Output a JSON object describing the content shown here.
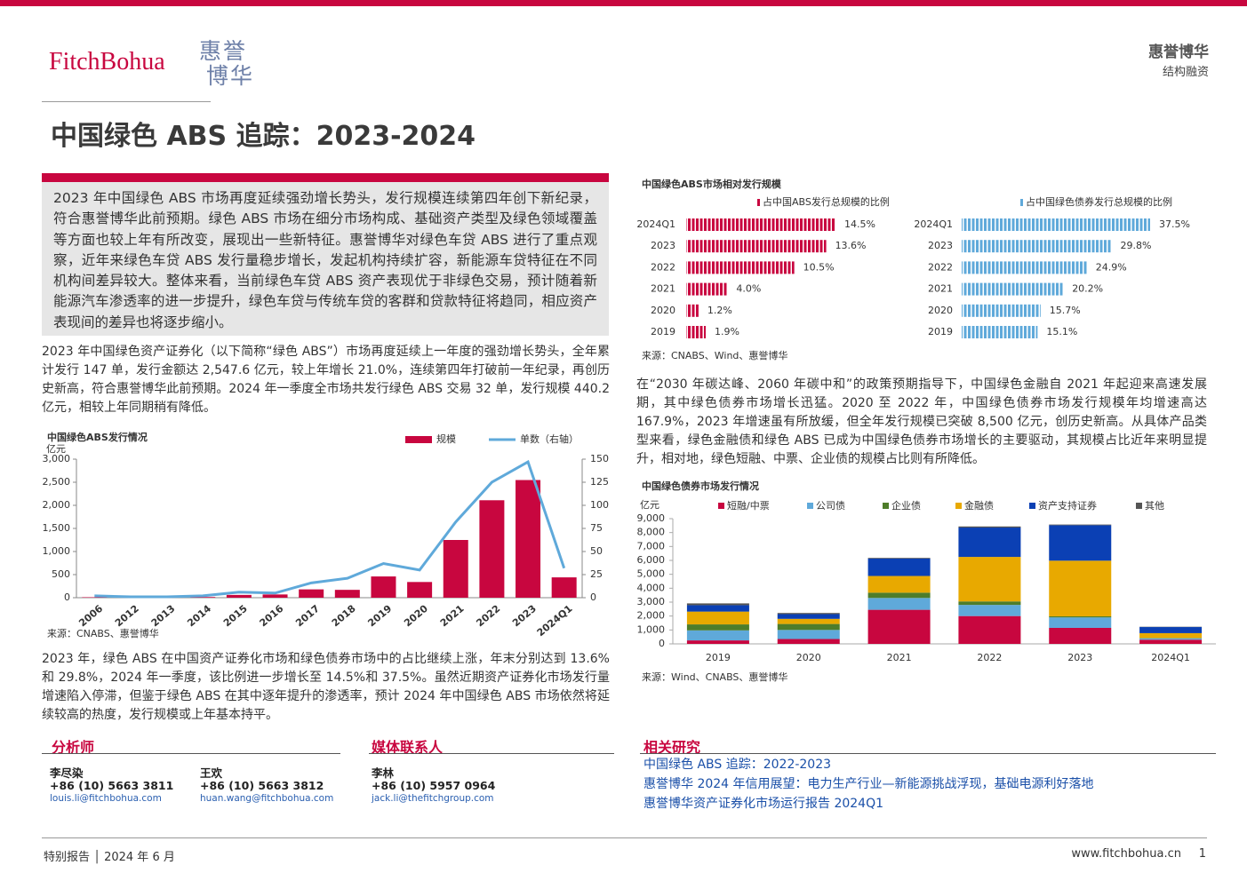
{
  "header": {
    "logo_text": "FitchBohua",
    "logo_mark_top": "惠誉",
    "logo_mark_bottom": "博华",
    "brand": "惠誉博华",
    "section": "结构融资"
  },
  "title": "中国绿色 ABS 追踪：2023-2024",
  "summary": "2023 年中国绿色 ABS 市场再度延续强劲增长势头，发行规模连续第四年创下新纪录，符合惠誉博华此前预期。绿色 ABS 市场在细分市场构成、基础资产类型及绿色领域覆盖等方面也较上年有所改变，展现出一些新特征。惠誉博华对绿色车贷 ABS 进行了重点观察，近年来绿色车贷 ABS 发行量稳步增长，发起机构持续扩容，新能源车贷特征在不同机构间差异较大。整体来看，当前绿色车贷 ABS 资产表现优于非绿色交易，预计随着新能源汽车渗透率的进一步提升，绿色车贷与传统车贷的客群和贷款特征将趋同，相应资产表现间的差异也将逐步缩小。",
  "paragraphs": [
    "2023 年中国绿色资产证券化（以下简称“绿色 ABS”）市场再度延续上一年度的强劲增长势头，全年累计发行 147 单，发行金额达 2,547.6 亿元，较上年增长 21.0%，连续第四年打破前一年纪录，再创历史新高，符合惠誉博华此前预期。2024 年一季度全市场共发行绿色 ABS 交易 32 单，发行规模 440.2 亿元，相较上年同期稍有降低。",
    "2023 年，绿色 ABS 在中国资产证券化市场和绿色债券市场中的占比继续上涨，年末分别达到 13.6%和 29.8%，2024 年一季度，该比例进一步增长至 14.5%和 37.5%。虽然近期资产证券化市场发行量增速陷入停滞，但鉴于绿色 ABS 在其中逐年提升的渗透率，预计 2024 年中国绿色 ABS 市场依然将延续较高的热度，发行规模或上年基本持平。",
    "在“2030 年碳达峰、2060 年碳中和”的政策预期指导下，中国绿色金融自 2021 年起迎来高速发展期，其中绿色债券市场增长迅猛。2020 至 2022 年，中国绿色债券市场发行规模年均增速高达 167.9%，2023 年增速虽有所放缓，但全年发行规模已突破 8,500 亿元，创历史新高。从具体产品类型来看，绿色金融债和绿色 ABS 已成为中国绿色债券市场增长的主要驱动，其规模占比近年来明显提升，相对地，绿色短融、中票、企业债的规模占比则有所降低。"
  ],
  "chart_data": [
    {
      "type": "combo",
      "title": "中国绿色ABS发行情况",
      "ylabel": "亿元",
      "source": "来源：CNABS、惠誉博华",
      "categories": [
        "2006",
        "2012",
        "2013",
        "2014",
        "2015",
        "2016",
        "2017",
        "2018",
        "2019",
        "2020",
        "2021",
        "2022",
        "2023",
        "2024Q1"
      ],
      "series": [
        {
          "name": "规模",
          "type": "bar",
          "color": "#c8063f",
          "values": [
            10,
            0,
            0,
            15,
            60,
            70,
            180,
            170,
            460,
            340,
            1250,
            2110,
            2547.6,
            440.2
          ]
        },
        {
          "name": "单数（右轴）",
          "type": "line",
          "axis": "y2",
          "color": "#5fa9da",
          "values": [
            2,
            1,
            1,
            2,
            6,
            5,
            16,
            21,
            37,
            30,
            82,
            125,
            147,
            32
          ]
        }
      ],
      "ylim": [
        0,
        3000
      ],
      "yticks": [
        0,
        500,
        {
          "value": 1000,
          "label": "1,000"
        },
        {
          "value": 1500,
          "label": "1,500"
        },
        {
          "value": 2000,
          "label": "2,000"
        },
        {
          "value": 2500,
          "label": "2,500"
        },
        {
          "value": 3000,
          "label": "3,000"
        }
      ],
      "y2lim": [
        0,
        150
      ],
      "y2ticks": [
        0,
        25,
        50,
        75,
        100,
        125,
        150
      ]
    },
    {
      "type": "hbar",
      "title": "中国绿色ABS市场相对发行规模",
      "source": "来源：CNABS、Wind、惠誉博华",
      "categories": [
        "2024Q1",
        "2023",
        "2022",
        "2021",
        "2020",
        "2019"
      ],
      "series": [
        {
          "name": "占中国ABS发行总规模的比例",
          "color": "#c8063f",
          "values": [
            14.5,
            13.6,
            10.5,
            4.0,
            1.2,
            1.9
          ],
          "value_labels": [
            "14.5%",
            "13.6%",
            "10.5%",
            "4.0%",
            "1.2%",
            "1.9%"
          ]
        }
      ]
    },
    {
      "type": "hbar",
      "categories": [
        "2024Q1",
        "2023",
        "2022",
        "2021",
        "2020",
        "2019"
      ],
      "series": [
        {
          "name": "占中国绿色债券发行总规模的比例",
          "color": "#5fa9da",
          "values": [
            37.5,
            29.8,
            24.9,
            20.2,
            15.7,
            15.1
          ],
          "value_labels": [
            "37.5%",
            "29.8%",
            "24.9%",
            "20.2%",
            "15.7%",
            "15.1%"
          ]
        }
      ]
    },
    {
      "type": "stacked",
      "title": "中国绿色债券市场发行情况",
      "ylabel": "亿元",
      "source": "来源：Wind、CNABS、惠誉博华",
      "categories": [
        "2019",
        "2020",
        "2021",
        "2022",
        "2023",
        "2024Q1"
      ],
      "series": [
        {
          "name": "短融/中票",
          "color": "#c8063f",
          "values": [
            250,
            350,
            2450,
            2000,
            1150,
            300
          ]
        },
        {
          "name": "公司债",
          "color": "#5fa9da",
          "values": [
            720,
            650,
            850,
            800,
            750,
            100
          ]
        },
        {
          "name": "企业债",
          "color": "#4e7d2a",
          "values": [
            430,
            430,
            380,
            250,
            80,
            20
          ]
        },
        {
          "name": "金融债",
          "color": "#e8a900",
          "values": [
            920,
            370,
            1200,
            3200,
            4000,
            350
          ]
        },
        {
          "name": "资产支持证券",
          "color": "#0b40b4",
          "values": [
            460,
            340,
            1250,
            2110,
            2547.6,
            440.2
          ]
        },
        {
          "name": "其他",
          "color": "#555555",
          "values": [
            130,
            80,
            50,
            80,
            50,
            20
          ]
        }
      ],
      "ylim": [
        0,
        9000
      ],
      "yticks": [
        0,
        {
          "value": 1000,
          "label": "1,000"
        },
        {
          "value": 2000,
          "label": "2,000"
        },
        {
          "value": 3000,
          "label": "3,000"
        },
        {
          "value": 4000,
          "label": "4,000"
        },
        {
          "value": 5000,
          "label": "5,000"
        },
        {
          "value": 6000,
          "label": "6,000"
        },
        {
          "value": 7000,
          "label": "7,000"
        },
        {
          "value": 8000,
          "label": "8,000"
        },
        {
          "value": 9000,
          "label": "9,000"
        }
      ]
    }
  ],
  "contacts": {
    "analysts": {
      "heading": "分析师",
      "people": [
        {
          "name": "李尽染",
          "phone": "+86 (10) 5663 3811",
          "email": "louis.li@fitchbohua.com"
        },
        {
          "name": "王欢",
          "phone": "+86 (10) 5663 3812",
          "email": "huan.wang@fitchbohua.com"
        }
      ]
    },
    "media": {
      "heading": "媒体联系人",
      "people": [
        {
          "name": "李林",
          "phone": "+86 (10) 5957 0964",
          "email": "jack.li@thefitchgroup.com"
        }
      ]
    }
  },
  "related": {
    "heading": "相关研究",
    "items": [
      "中国绿色 ABS 追踪：2022-2023",
      "惠誉博华 2024 年信用展望：电力生产行业—新能源挑战浮现，基础电源利好落地",
      "惠誉博华资产证券化市场运行报告 2024Q1"
    ]
  },
  "footer": {
    "left": "特别报告 │ 2024 年 6 月",
    "site": "www.fitchbohua.cn",
    "page": "1"
  }
}
